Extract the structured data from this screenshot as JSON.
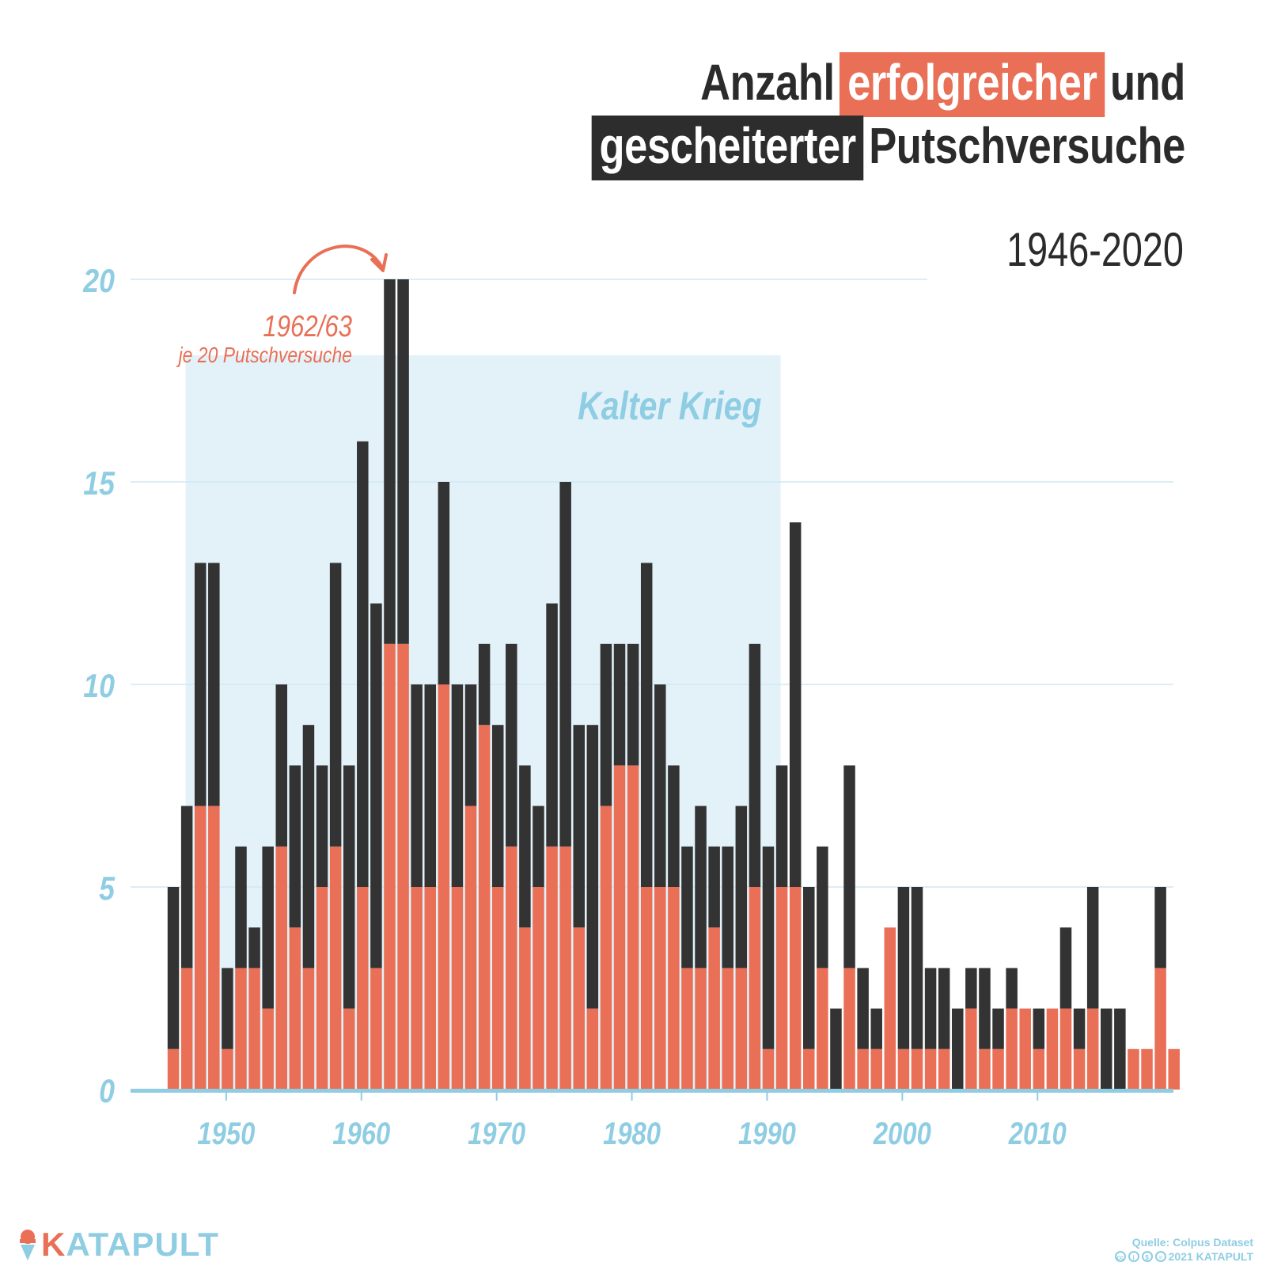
{
  "title": {
    "word1": "Anzahl",
    "highlight_red": "erfolgreicher",
    "word2": "und",
    "highlight_dark": "gescheiterter",
    "word3": "Putschversuche",
    "years": "1946-2020"
  },
  "annotation": {
    "year": "1962/63",
    "text": "je 20 Putschversuche"
  },
  "shaded_region": {
    "label": "Kalter Krieg",
    "x_start": 1946.5,
    "x_end": 1990.5
  },
  "colors": {
    "successful": "#e96f56",
    "failed": "#333333",
    "axis": "#8fcde3",
    "shade": "#e3f2f9",
    "shade_label": "#8fcde3",
    "grid": "#cfe8f2"
  },
  "logo": {
    "text": "KATAPULT",
    "icon": "ice-cream-icon"
  },
  "source": {
    "line1": "Quelle: Colpus Dataset",
    "line2": "2021 KATAPULT",
    "icons": [
      "cc-icon",
      "by-icon",
      "nc-icon",
      "nd-icon"
    ]
  },
  "chart_data": {
    "type": "bar",
    "stacked": true,
    "title": "Anzahl erfolgreicher und gescheiterter Putschversuche 1946-2020",
    "xlabel": "",
    "ylabel": "",
    "ylim": [
      0,
      20
    ],
    "yticks": [
      0,
      5,
      10,
      15,
      20
    ],
    "xticks": [
      1950,
      1960,
      1970,
      1980,
      1990,
      2000,
      2010
    ],
    "categories": [
      1946,
      1947,
      1948,
      1949,
      1950,
      1951,
      1952,
      1953,
      1954,
      1955,
      1956,
      1957,
      1958,
      1959,
      1960,
      1961,
      1962,
      1963,
      1964,
      1965,
      1966,
      1967,
      1968,
      1969,
      1970,
      1971,
      1972,
      1973,
      1974,
      1975,
      1976,
      1977,
      1978,
      1979,
      1980,
      1981,
      1982,
      1983,
      1984,
      1985,
      1986,
      1987,
      1988,
      1989,
      1990,
      1991,
      1992,
      1993,
      1994,
      1995,
      1996,
      1997,
      1998,
      1999,
      2000,
      2001,
      2002,
      2003,
      2004,
      2005,
      2006,
      2007,
      2008,
      2009,
      2010,
      2011,
      2012,
      2013,
      2014,
      2015,
      2016,
      2017,
      2018,
      2019,
      2020
    ],
    "series": [
      {
        "name": "erfolgreich",
        "values": [
          1,
          3,
          7,
          7,
          1,
          3,
          3,
          2,
          6,
          4,
          3,
          5,
          6,
          2,
          5,
          3,
          11,
          11,
          5,
          5,
          10,
          5,
          7,
          9,
          5,
          6,
          4,
          5,
          6,
          6,
          4,
          2,
          7,
          8,
          8,
          5,
          5,
          5,
          3,
          3,
          4,
          3,
          3,
          5,
          1,
          5,
          5,
          1,
          3,
          0,
          3,
          1,
          1,
          4,
          1,
          1,
          1,
          1,
          0,
          2,
          1,
          1,
          2,
          2,
          1,
          2,
          2,
          1,
          2,
          0,
          0,
          1,
          1,
          3,
          1
        ]
      },
      {
        "name": "gescheitert",
        "values": [
          4,
          4,
          6,
          6,
          2,
          3,
          1,
          4,
          4,
          4,
          6,
          3,
          7,
          6,
          11,
          9,
          9,
          9,
          5,
          5,
          5,
          5,
          3,
          2,
          4,
          5,
          4,
          2,
          6,
          9,
          5,
          7,
          4,
          3,
          3,
          8,
          5,
          3,
          3,
          4,
          2,
          3,
          4,
          6,
          5,
          3,
          9,
          4,
          3,
          2,
          5,
          2,
          1,
          0,
          4,
          4,
          2,
          2,
          2,
          1,
          2,
          1,
          1,
          0,
          1,
          0,
          2,
          1,
          3,
          2,
          2,
          0,
          0,
          2,
          0
        ]
      }
    ]
  }
}
